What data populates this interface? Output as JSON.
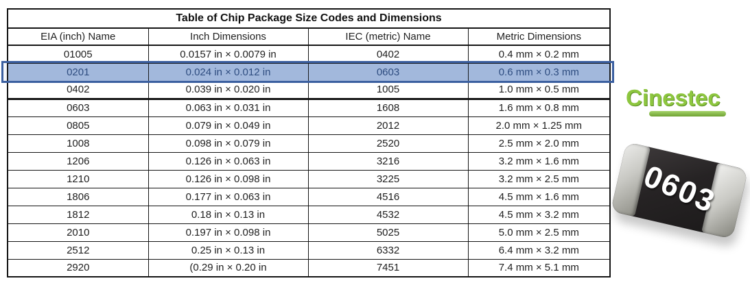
{
  "table": {
    "title": "Table of Chip Package Size Codes and Dimensions",
    "columns": [
      "EIA (inch) Name",
      "Inch Dimensions",
      "IEC (metric) Name",
      "Metric Dimensions"
    ],
    "rows": [
      [
        "01005",
        "0.0157 in × 0.0079 in",
        "0402",
        "0.4 mm × 0.2 mm"
      ],
      [
        "0201",
        "0.024 in × 0.012 in",
        "0603",
        "0.6 mm × 0.3 mm"
      ],
      [
        "0402",
        "0.039 in × 0.020 in",
        "1005",
        "1.0 mm × 0.5 mm"
      ],
      [
        "0603",
        "0.063 in × 0.031 in",
        "1608",
        "1.6 mm × 0.8 mm"
      ],
      [
        "0805",
        "0.079 in × 0.049 in",
        "2012",
        "2.0 mm × 1.25 mm"
      ],
      [
        "1008",
        "0.098 in × 0.079 in",
        "2520",
        "2.5 mm × 2.0 mm"
      ],
      [
        "1206",
        "0.126 in × 0.063 in",
        "3216",
        "3.2 mm × 1.6 mm"
      ],
      [
        "1210",
        "0.126 in × 0.098 in",
        "3225",
        "3.2 mm × 2.5 mm"
      ],
      [
        "1806",
        "0.177 in × 0.063 in",
        "4516",
        "4.5 mm × 1.6 mm"
      ],
      [
        "1812",
        "0.18 in × 0.13 in",
        "4532",
        "4.5 mm × 3.2 mm"
      ],
      [
        "2010",
        "0.197 in × 0.098 in",
        "5025",
        "5.0 mm × 2.5 mm"
      ],
      [
        "2512",
        "0.25 in × 0.13 in",
        "6332",
        "6.4 mm × 3.2 mm"
      ],
      [
        "2920",
        "(0.29 in × 0.20 in",
        "7451",
        "7.4 mm × 5.1 mm"
      ]
    ],
    "highlight": {
      "row_index": 1,
      "fill": "#a7bddf",
      "border": "#3b5fa0",
      "text": "#2c4a7c"
    },
    "thick_border_after_rows": [
      2
    ],
    "border_color": "#141414"
  },
  "logo": {
    "text": "Cinestec",
    "color": "#8dc63f"
  },
  "chip": {
    "label": "0603",
    "body_color": "#262324",
    "terminal_color": "#c9c9c4",
    "label_color": "#ffffff"
  }
}
